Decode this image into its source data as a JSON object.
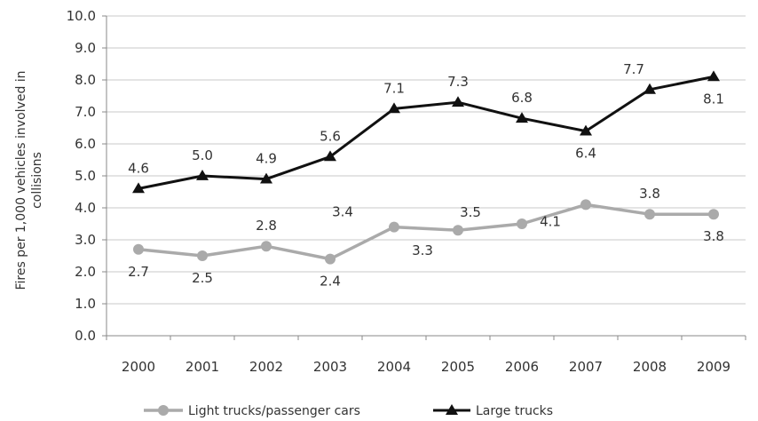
{
  "chart_data": {
    "type": "line",
    "title": "",
    "xlabel": "",
    "ylabel_lines": [
      "Fires per 1,000 vehicles involved in",
      "collisions"
    ],
    "x": [
      "2000",
      "2001",
      "2002",
      "2003",
      "2004",
      "2005",
      "2006",
      "2007",
      "2008",
      "2009"
    ],
    "ylim": [
      0,
      10
    ],
    "yticks": [
      "0.0",
      "1.0",
      "2.0",
      "3.0",
      "4.0",
      "5.0",
      "6.0",
      "7.0",
      "8.0",
      "9.0",
      "10.0"
    ],
    "grid": true,
    "legend_position": "bottom",
    "series": [
      {
        "name": "Light trucks/passenger cars",
        "values": [
          2.7,
          2.5,
          2.8,
          2.4,
          3.4,
          3.3,
          3.5,
          4.1,
          3.8,
          3.8
        ],
        "labels": [
          "2.7",
          "2.5",
          "2.8",
          "2.4",
          "3.4",
          "3.3",
          "3.5",
          "4.1",
          "3.8",
          "3.8"
        ],
        "color": "#aaaaaa",
        "marker": "circle"
      },
      {
        "name": "Large trucks",
        "values": [
          4.6,
          5.0,
          4.9,
          5.6,
          7.1,
          7.3,
          6.8,
          6.4,
          7.7,
          8.1
        ],
        "labels": [
          "4.6",
          "5.0",
          "4.9",
          "5.6",
          "7.1",
          "7.3",
          "6.8",
          "6.4",
          "7.7",
          "8.1"
        ],
        "color": "#111111",
        "marker": "triangle"
      }
    ]
  }
}
